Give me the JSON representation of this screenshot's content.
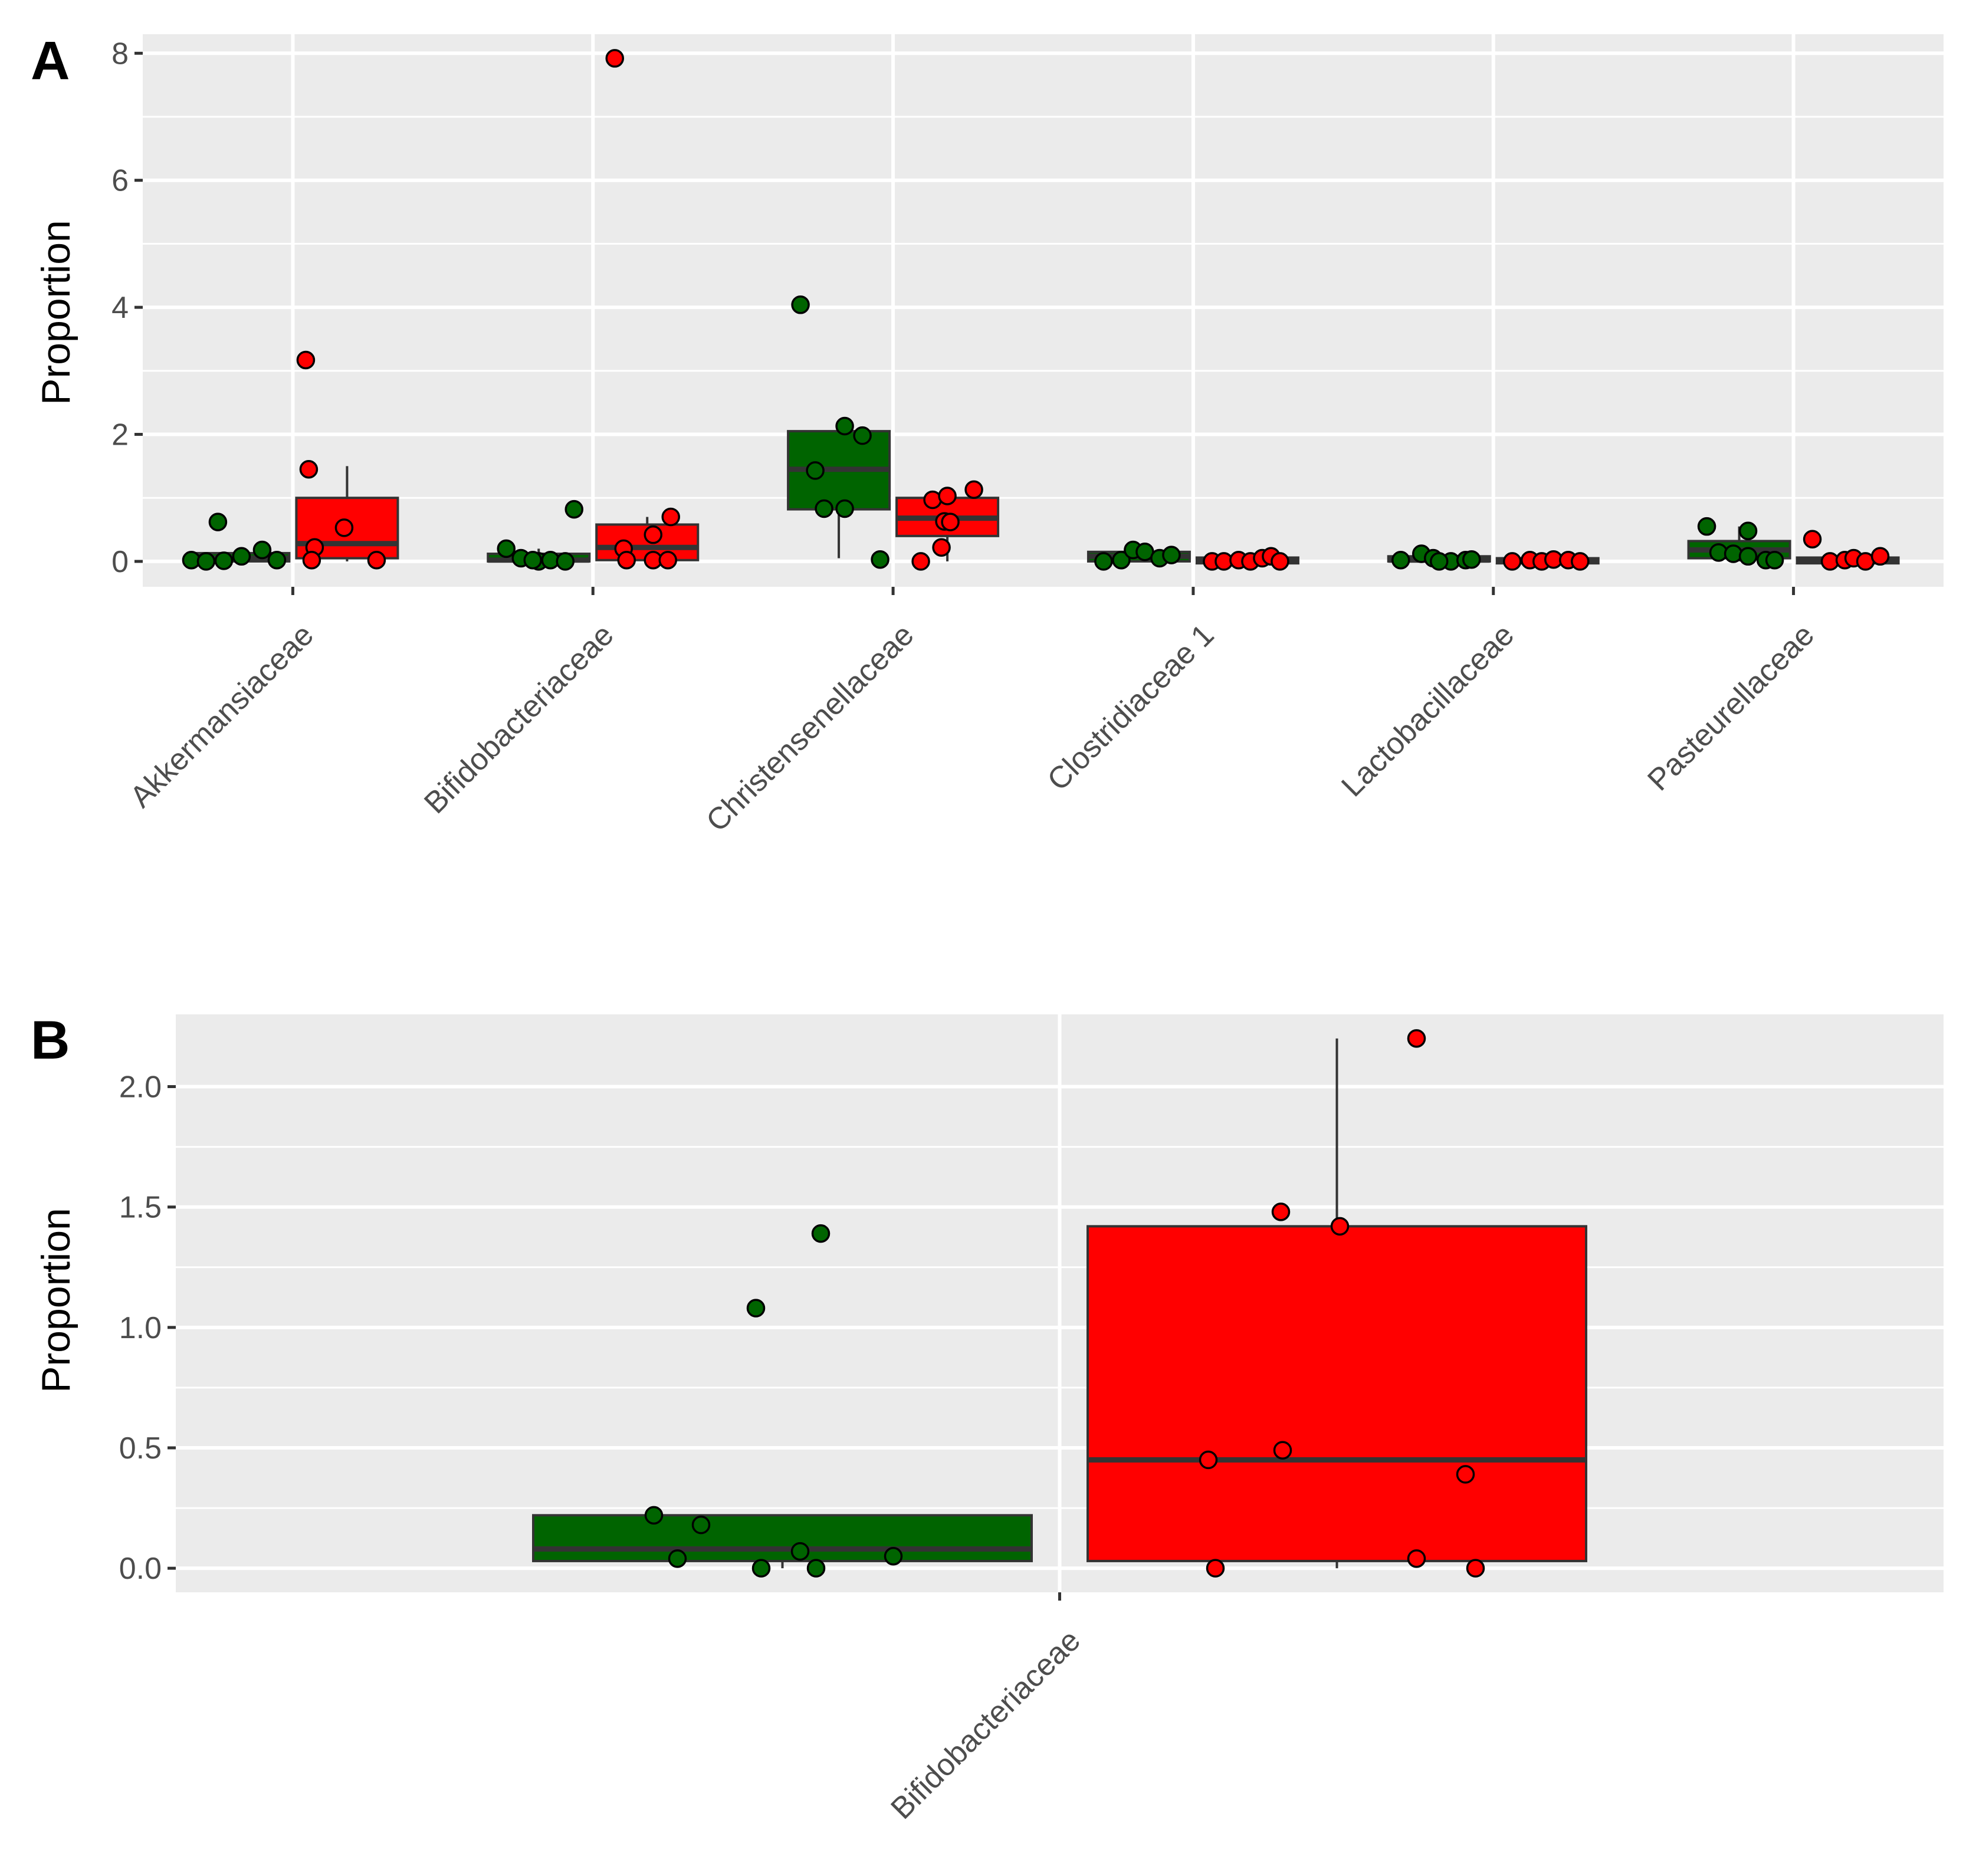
{
  "colors": {
    "green": "#006400",
    "red": "#ff0000",
    "panel_bg": "#ebebeb",
    "grid": "#ffffff",
    "box_edge": "#333333",
    "tick_text": "#4d4d4d"
  },
  "chart_data": [
    {
      "panel_label": "A",
      "type": "box",
      "ylabel": "Proportion",
      "xlabel": "",
      "ylim": [
        -0.4,
        8.3
      ],
      "yticks": [
        0,
        2,
        4,
        6,
        8
      ],
      "ytick_labels": [
        "0",
        "2",
        "4",
        "6",
        "8"
      ],
      "categories": [
        "Akkermansiaceae",
        "Bifidobacteriaceae",
        "Christensenellaceae",
        "Clostridiaceae 1",
        "Lactobacillaceae",
        "Pasteurellaceae"
      ],
      "series": [
        {
          "name": "green",
          "boxes": [
            {
              "q1": 0.0,
              "median": 0.05,
              "q3": 0.13,
              "whisker_low": 0.0,
              "whisker_high": 0.2,
              "points": [
                0.02,
                0.0,
                0.01,
                0.08,
                0.62,
                0.18,
                0.02
              ]
            },
            {
              "q1": 0.0,
              "median": 0.02,
              "q3": 0.12,
              "whisker_low": 0.0,
              "whisker_high": 0.2,
              "points": [
                0.2,
                0.05,
                0.0,
                0.02,
                0.0,
                0.82,
                0.02
              ]
            },
            {
              "q1": 0.82,
              "median": 1.45,
              "q3": 2.05,
              "whisker_low": 0.05,
              "whisker_high": 2.1,
              "points": [
                4.04,
                1.43,
                0.83,
                0.83,
                2.13,
                1.98,
                0.03
              ]
            },
            {
              "q1": 0.0,
              "median": 0.08,
              "q3": 0.15,
              "whisker_low": 0.0,
              "whisker_high": 0.2,
              "points": [
                0.0,
                0.02,
                0.18,
                0.15,
                0.05,
                0.1
              ]
            },
            {
              "q1": 0.0,
              "median": 0.02,
              "q3": 0.08,
              "whisker_low": 0.0,
              "whisker_high": 0.12,
              "points": [
                0.02,
                0.12,
                0.05,
                0.0,
                0.02,
                0.03,
                0.0
              ]
            },
            {
              "q1": 0.05,
              "median": 0.18,
              "q3": 0.32,
              "whisker_low": 0.0,
              "whisker_high": 0.55,
              "points": [
                0.55,
                0.14,
                0.12,
                0.08,
                0.48,
                0.02,
                0.02
              ]
            }
          ]
        },
        {
          "name": "red",
          "boxes": [
            {
              "q1": 0.05,
              "median": 0.28,
              "q3": 1.0,
              "whisker_low": 0.0,
              "whisker_high": 1.5,
              "points": [
                3.17,
                1.45,
                0.22,
                0.02,
                0.53,
                0.02
              ]
            },
            {
              "q1": 0.02,
              "median": 0.22,
              "q3": 0.58,
              "whisker_low": 0.0,
              "whisker_high": 0.7,
              "points": [
                7.92,
                0.2,
                0.02,
                0.42,
                0.02,
                0.02,
                0.7
              ]
            },
            {
              "q1": 0.4,
              "median": 0.68,
              "q3": 1.0,
              "whisker_low": 0.0,
              "whisker_high": 1.15,
              "points": [
                0.0,
                0.97,
                0.22,
                0.63,
                1.03,
                0.62,
                1.13
              ]
            },
            {
              "q1": -0.03,
              "median": 0.01,
              "q3": 0.06,
              "whisker_low": -0.03,
              "whisker_high": 0.1,
              "points": [
                0.0,
                0.0,
                0.02,
                0.0,
                0.05,
                0.08,
                0.0
              ]
            },
            {
              "q1": -0.03,
              "median": 0.0,
              "q3": 0.05,
              "whisker_low": -0.03,
              "whisker_high": 0.06,
              "points": [
                0.0,
                0.02,
                0.0,
                0.03,
                0.02,
                0.0
              ]
            },
            {
              "q1": -0.03,
              "median": 0.01,
              "q3": 0.06,
              "whisker_low": -0.03,
              "whisker_high": 0.1,
              "points": [
                0.35,
                0.0,
                0.02,
                0.05,
                0.0,
                0.08
              ]
            }
          ]
        }
      ]
    },
    {
      "panel_label": "B",
      "type": "box",
      "ylabel": "Proportion",
      "xlabel": "",
      "ylim": [
        -0.1,
        2.3
      ],
      "yticks": [
        0.0,
        0.5,
        1.0,
        1.5,
        2.0
      ],
      "ytick_labels": [
        "0.0",
        "0.5",
        "1.0",
        "1.5",
        "2.0"
      ],
      "categories": [
        "Bifidobacteriaceae"
      ],
      "series": [
        {
          "name": "green",
          "boxes": [
            {
              "q1": 0.03,
              "median": 0.08,
              "q3": 0.22,
              "whisker_low": 0.0,
              "whisker_high": 0.22,
              "points": [
                0.22,
                0.04,
                1.08,
                0.18,
                0.0,
                0.07,
                1.39,
                0.0,
                0.05
              ]
            }
          ]
        },
        {
          "name": "red",
          "boxes": [
            {
              "q1": 0.03,
              "median": 0.45,
              "q3": 1.42,
              "whisker_low": 0.0,
              "whisker_high": 2.2,
              "points": [
                0.45,
                0.0,
                1.48,
                0.49,
                1.42,
                2.2,
                0.04,
                0.39,
                0.0
              ]
            }
          ]
        }
      ]
    }
  ]
}
